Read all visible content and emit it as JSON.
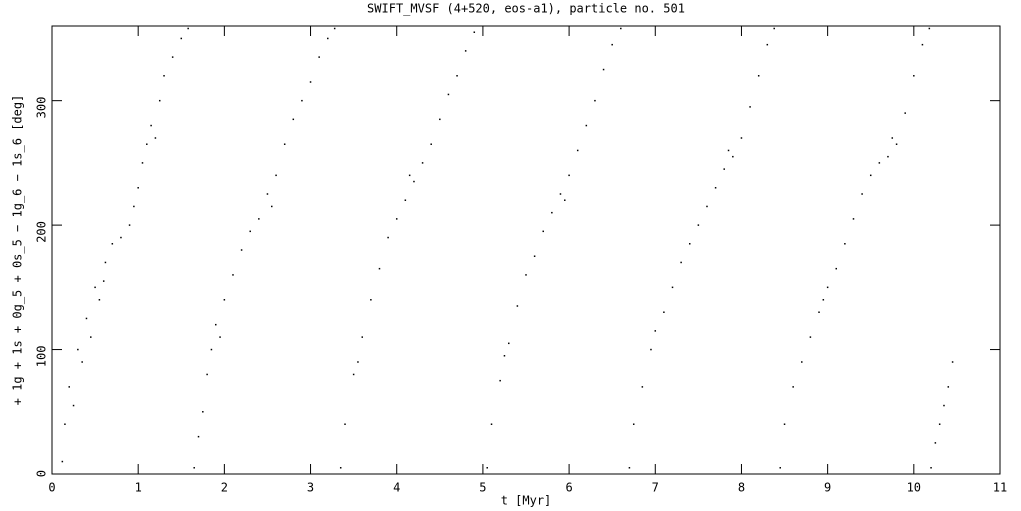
{
  "chart_data": {
    "type": "scatter",
    "title": "SWIFT_MVSF (4+520, eos-a1), particle no. 501",
    "xlabel": "t [Myr]",
    "ylabel": "+ 1g + 1s + 0g_5 + 0s_5 − 1g_6 − 1s_6 [deg]",
    "color": "#000000",
    "xlim": [
      0,
      11
    ],
    "xticks": [
      0,
      1,
      2,
      3,
      4,
      5,
      6,
      7,
      8,
      9,
      10,
      11
    ],
    "ylim": [
      0,
      360
    ],
    "yticks": [
      0,
      100,
      200,
      300
    ],
    "x": [
      0.12,
      0.15,
      0.2,
      0.25,
      0.3,
      0.35,
      0.4,
      0.45,
      0.5,
      0.55,
      0.62,
      0.7,
      0.8,
      0.9,
      0.95,
      1.0,
      1.05,
      1.1,
      1.15,
      1.25,
      1.3,
      1.4,
      1.5,
      1.58,
      0.6,
      1.2,
      1.65,
      1.7,
      1.75,
      1.8,
      1.85,
      1.9,
      2.0,
      2.1,
      2.2,
      2.3,
      2.4,
      2.5,
      2.6,
      2.7,
      2.8,
      2.9,
      3.0,
      3.1,
      3.2,
      3.28,
      1.95,
      2.55,
      3.35,
      3.4,
      3.5,
      3.6,
      3.7,
      3.8,
      3.9,
      4.0,
      4.1,
      4.2,
      4.3,
      4.4,
      4.5,
      4.6,
      4.7,
      4.8,
      4.9,
      3.55,
      4.15,
      5.05,
      5.1,
      5.2,
      5.3,
      5.4,
      5.5,
      5.6,
      5.7,
      5.8,
      5.9,
      6.0,
      6.1,
      6.2,
      6.3,
      6.4,
      6.5,
      6.6,
      5.25,
      5.95,
      6.7,
      6.75,
      6.85,
      6.95,
      7.1,
      7.2,
      7.3,
      7.4,
      7.5,
      7.6,
      7.7,
      7.8,
      7.9,
      8.0,
      8.1,
      8.2,
      8.3,
      8.38,
      7.0,
      7.85,
      8.45,
      8.5,
      8.6,
      8.7,
      8.8,
      8.9,
      9.0,
      9.1,
      9.2,
      9.3,
      9.4,
      9.5,
      9.6,
      9.7,
      9.8,
      9.9,
      10.0,
      10.1,
      10.18,
      8.95,
      9.75,
      10.2,
      10.25,
      10.3,
      10.35,
      10.4,
      10.45
    ],
    "values": [
      10,
      40,
      70,
      55,
      100,
      90,
      125,
      110,
      150,
      140,
      170,
      185,
      190,
      200,
      215,
      230,
      250,
      265,
      280,
      300,
      320,
      335,
      350,
      358,
      155,
      270,
      5,
      30,
      50,
      80,
      100,
      120,
      140,
      160,
      180,
      195,
      205,
      225,
      240,
      265,
      285,
      300,
      315,
      335,
      350,
      358,
      110,
      215,
      5,
      40,
      80,
      110,
      140,
      165,
      190,
      205,
      220,
      235,
      250,
      265,
      285,
      305,
      320,
      340,
      355,
      90,
      240,
      5,
      40,
      75,
      105,
      135,
      160,
      175,
      195,
      210,
      225,
      240,
      260,
      280,
      300,
      325,
      345,
      358,
      95,
      220,
      5,
      40,
      70,
      100,
      130,
      150,
      170,
      185,
      200,
      215,
      230,
      245,
      255,
      270,
      295,
      320,
      345,
      358,
      115,
      260,
      5,
      40,
      70,
      90,
      110,
      130,
      150,
      165,
      185,
      205,
      225,
      240,
      250,
      255,
      265,
      290,
      320,
      345,
      358,
      140,
      270,
      5,
      25,
      40,
      55,
      70,
      90
    ]
  }
}
